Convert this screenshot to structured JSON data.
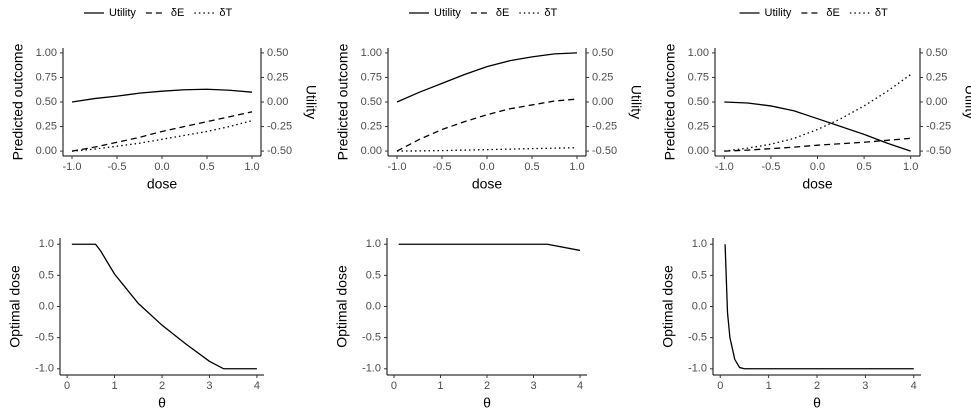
{
  "chart_data": [
    {
      "type": "line",
      "xlabel": "dose",
      "ylabel": "Predicted outcome",
      "y2label": "Utility",
      "legend": "top",
      "x": [
        -1,
        -0.75,
        -0.5,
        -0.25,
        0,
        0.25,
        0.5,
        0.75,
        1
      ],
      "series": [
        {
          "name": "Utility",
          "color": "#000000",
          "dash": "solid",
          "axis": "y2",
          "values": [
            0.0,
            0.035,
            0.06,
            0.09,
            0.11,
            0.125,
            0.13,
            0.12,
            0.1
          ]
        },
        {
          "name": "δE",
          "color": "#000000",
          "dash": "dashed",
          "values": [
            0,
            0.04,
            0.09,
            0.14,
            0.2,
            0.25,
            0.3,
            0.35,
            0.4
          ]
        },
        {
          "name": "δT",
          "color": "#000000",
          "dash": "dotted",
          "values": [
            0,
            0.02,
            0.05,
            0.08,
            0.12,
            0.16,
            0.2,
            0.25,
            0.31
          ]
        }
      ],
      "xlim": [
        -1.1,
        1.1
      ],
      "xticks": [
        {
          "value": -1,
          "label": "-1.0"
        },
        -0.5,
        {
          "value": 0,
          "label": "0.0"
        },
        0.5,
        {
          "value": 1,
          "label": "1.0"
        }
      ],
      "ylim": [
        -0.05,
        1.05
      ],
      "yticks": [
        {
          "value": 0,
          "label": "0.00"
        },
        0.25,
        {
          "value": 0.5,
          "label": "0.50"
        },
        0.75,
        {
          "value": 1,
          "label": "1.00"
        }
      ],
      "y2lim": [
        -0.55,
        0.55
      ],
      "y2ticks": [
        {
          "value": -0.5,
          "label": "-0.50"
        },
        -0.25,
        {
          "value": 0,
          "label": "0.00"
        },
        0.25,
        {
          "value": 0.5,
          "label": "0.50"
        }
      ]
    },
    {
      "type": "line",
      "xlabel": "dose",
      "ylabel": "Predicted outcome",
      "y2label": "Utility",
      "legend": "top",
      "x": [
        -1,
        -0.75,
        -0.5,
        -0.25,
        0,
        0.25,
        0.5,
        0.75,
        1
      ],
      "series": [
        {
          "name": "Utility",
          "color": "#000000",
          "dash": "solid",
          "axis": "y2",
          "values": [
            0.0,
            0.1,
            0.19,
            0.28,
            0.36,
            0.42,
            0.46,
            0.49,
            0.5
          ]
        },
        {
          "name": "δE",
          "color": "#000000",
          "dash": "dashed",
          "values": [
            0,
            0.12,
            0.22,
            0.3,
            0.37,
            0.43,
            0.47,
            0.51,
            0.53
          ]
        },
        {
          "name": "δT",
          "color": "#000000",
          "dash": "dotted",
          "values": [
            0,
            0.002,
            0.005,
            0.01,
            0.015,
            0.02,
            0.025,
            0.03,
            0.035
          ]
        }
      ],
      "xlim": [
        -1.1,
        1.1
      ],
      "xticks": [
        {
          "value": -1,
          "label": "-1.0"
        },
        -0.5,
        {
          "value": 0,
          "label": "0.0"
        },
        0.5,
        {
          "value": 1,
          "label": "1.0"
        }
      ],
      "ylim": [
        -0.05,
        1.05
      ],
      "yticks": [
        {
          "value": 0,
          "label": "0.00"
        },
        0.25,
        {
          "value": 0.5,
          "label": "0.50"
        },
        0.75,
        {
          "value": 1,
          "label": "1.00"
        }
      ],
      "y2lim": [
        -0.55,
        0.55
      ],
      "y2ticks": [
        {
          "value": -0.5,
          "label": "-0.50"
        },
        -0.25,
        {
          "value": 0,
          "label": "0.00"
        },
        0.25,
        {
          "value": 0.5,
          "label": "0.50"
        }
      ]
    },
    {
      "type": "line",
      "xlabel": "dose",
      "ylabel": "Predicted outcome",
      "y2label": "Utility",
      "legend": "top",
      "x": [
        -1,
        -0.75,
        -0.5,
        -0.25,
        0,
        0.25,
        0.5,
        0.75,
        1
      ],
      "series": [
        {
          "name": "Utility",
          "color": "#000000",
          "dash": "solid",
          "axis": "y2",
          "values": [
            0.0,
            -0.01,
            -0.04,
            -0.09,
            -0.17,
            -0.25,
            -0.33,
            -0.42,
            -0.5
          ]
        },
        {
          "name": "δE",
          "color": "#000000",
          "dash": "dashed",
          "values": [
            0,
            0.01,
            0.025,
            0.04,
            0.06,
            0.075,
            0.09,
            0.11,
            0.13
          ]
        },
        {
          "name": "δT",
          "color": "#000000",
          "dash": "dotted",
          "values": [
            0,
            0.03,
            0.07,
            0.13,
            0.22,
            0.33,
            0.46,
            0.61,
            0.78
          ]
        }
      ],
      "xlim": [
        -1.1,
        1.1
      ],
      "xticks": [
        {
          "value": -1,
          "label": "-1.0"
        },
        -0.5,
        {
          "value": 0,
          "label": "0.0"
        },
        0.5,
        {
          "value": 1,
          "label": "1.0"
        }
      ],
      "ylim": [
        -0.05,
        1.05
      ],
      "yticks": [
        {
          "value": 0,
          "label": "0.00"
        },
        0.25,
        {
          "value": 0.5,
          "label": "0.50"
        },
        0.75,
        {
          "value": 1,
          "label": "1.00"
        }
      ],
      "y2lim": [
        -0.55,
        0.55
      ],
      "y2ticks": [
        {
          "value": -0.5,
          "label": "-0.50"
        },
        -0.25,
        {
          "value": 0,
          "label": "0.00"
        },
        0.25,
        {
          "value": 0.5,
          "label": "0.50"
        }
      ]
    },
    {
      "type": "line",
      "xlabel": "θ",
      "ylabel": "Optimal dose",
      "x": [
        0.1,
        0.6,
        0.7,
        1,
        1.5,
        2,
        2.5,
        3,
        3.3,
        4
      ],
      "series": [
        {
          "color": "#000000",
          "dash": "solid",
          "values": [
            1,
            1,
            0.9,
            0.52,
            0.05,
            -0.3,
            -0.6,
            -0.88,
            -1,
            -1
          ]
        }
      ],
      "xlim": [
        -0.15,
        4.15
      ],
      "xticks": [
        0,
        1,
        2,
        3,
        4
      ],
      "ylim": [
        -1.1,
        1.1
      ],
      "yticks": [
        {
          "value": -1,
          "label": "-1.0"
        },
        -0.5,
        {
          "value": 0,
          "label": "0.0"
        },
        0.5,
        {
          "value": 1,
          "label": "1.0"
        }
      ]
    },
    {
      "type": "line",
      "xlabel": "θ",
      "ylabel": "Optimal dose",
      "x": [
        0.1,
        3.3,
        4
      ],
      "series": [
        {
          "color": "#000000",
          "dash": "solid",
          "values": [
            1,
            1,
            0.9
          ]
        }
      ],
      "xlim": [
        -0.15,
        4.15
      ],
      "xticks": [
        0,
        1,
        2,
        3,
        4
      ],
      "ylim": [
        -1.1,
        1.1
      ],
      "yticks": [
        {
          "value": -1,
          "label": "-1.0"
        },
        -0.5,
        {
          "value": 0,
          "label": "0.0"
        },
        0.5,
        {
          "value": 1,
          "label": "1.0"
        }
      ]
    },
    {
      "type": "line",
      "xlabel": "θ",
      "ylabel": "Optimal dose",
      "x": [
        0.1,
        0.15,
        0.2,
        0.3,
        0.4,
        0.5,
        4
      ],
      "series": [
        {
          "color": "#000000",
          "dash": "solid",
          "values": [
            1.0,
            -0.1,
            -0.5,
            -0.85,
            -0.98,
            -1,
            -1
          ]
        }
      ],
      "xlim": [
        -0.15,
        4.15
      ],
      "xticks": [
        0,
        1,
        2,
        3,
        4
      ],
      "ylim": [
        -1.1,
        1.1
      ],
      "yticks": [
        {
          "value": -1,
          "label": "-1.0"
        },
        -0.5,
        {
          "value": 0,
          "label": "0.0"
        },
        0.5,
        {
          "value": 1,
          "label": "1.0"
        }
      ]
    }
  ]
}
